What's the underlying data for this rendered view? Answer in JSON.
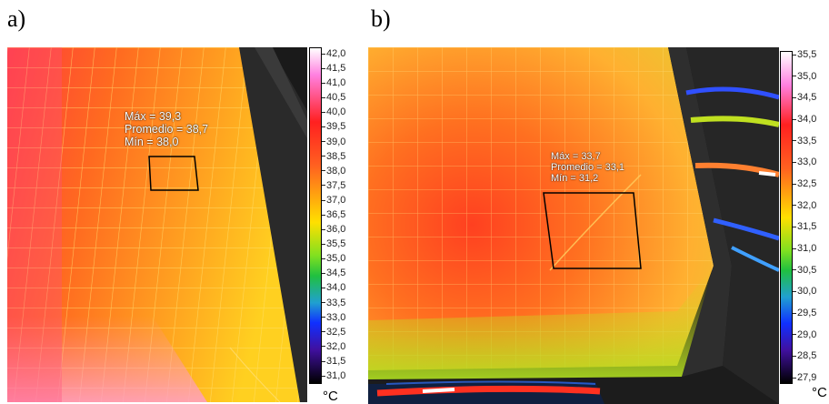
{
  "panels": [
    {
      "label": "a)",
      "stats": {
        "max": "Máx = 39,3",
        "avg": "Promedio = 38,7",
        "min": "Mín = 38,0"
      },
      "scale": [
        "42,0",
        "41,5",
        "41,0",
        "40,5",
        "40,0",
        "39,5",
        "39,0",
        "38,5",
        "38,0",
        "37,5",
        "37,0",
        "36,5",
        "36,0",
        "35,5",
        "35,0",
        "34,5",
        "34,0",
        "33,5",
        "33,0",
        "32,5",
        "32,0",
        "31,5",
        "31,0"
      ],
      "unit": "°C"
    },
    {
      "label": "b)",
      "stats": {
        "max": "Máx = 33,7",
        "avg": "Promedio = 33,1",
        "min": "Mín = 31,2"
      },
      "scale": [
        "35,5",
        "35,0",
        "34,5",
        "34,0",
        "33,5",
        "33,0",
        "32,5",
        "32,0",
        "31,5",
        "31,0",
        "30,5",
        "30,0",
        "29,5",
        "29,0",
        "28,5",
        "27,9"
      ],
      "unit": "°C"
    }
  ],
  "colors": {
    "palette_top": "#ffffff",
    "palette_hot": "#ff2020",
    "palette_mid": "#ffe000",
    "palette_cool": "#20c040",
    "palette_cold": "#1030ff",
    "palette_bottom": "#000000"
  }
}
